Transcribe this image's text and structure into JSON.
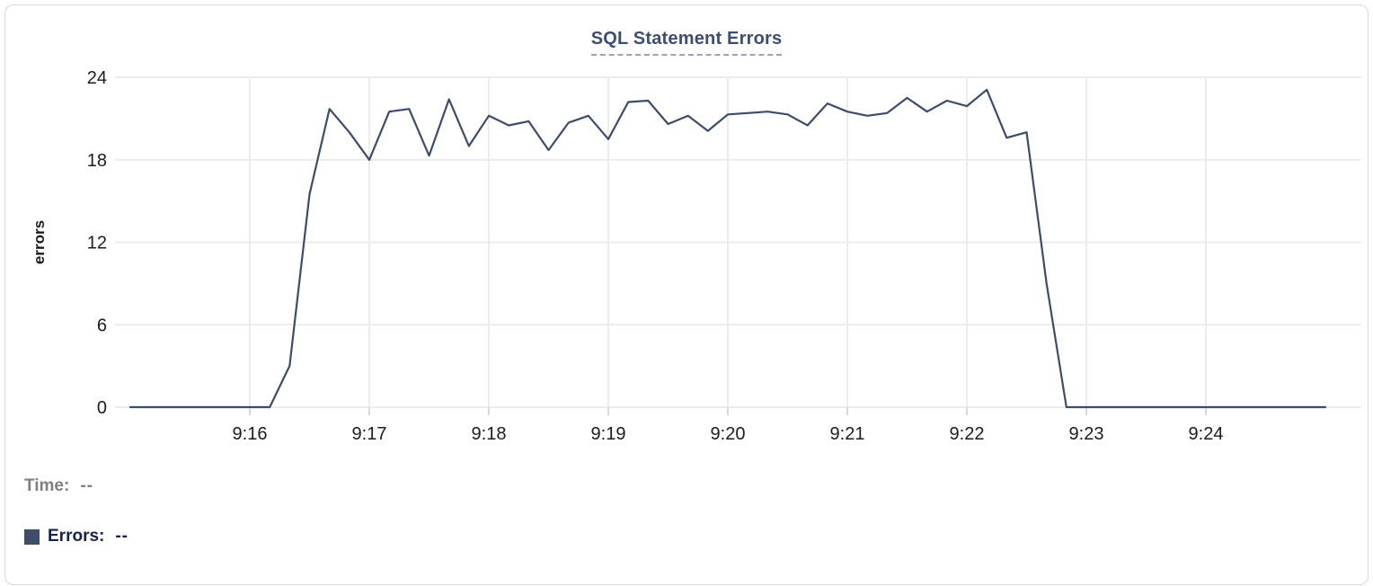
{
  "card": {
    "title": "SQL Statement Errors"
  },
  "readout": {
    "time_label": "Time:",
    "time_value": "--",
    "errors_label": "Errors:",
    "errors_value": "--"
  },
  "colors": {
    "line": "#3d4c69",
    "swatch": "#3f4d68",
    "title_text": "#3e4e6f",
    "grid": "#ececec",
    "tick_stub": "#d9d9d9",
    "axis_text": "#1c1c1c",
    "time_label": "#7f7f7f",
    "errors_label": "#16224a"
  },
  "chart_data": {
    "type": "line",
    "title": "SQL Statement Errors",
    "xlabel": "",
    "ylabel": "errors",
    "ylim": [
      0,
      24
    ],
    "yticks": [
      0,
      6,
      12,
      18,
      24
    ],
    "xticks": [
      "9:16",
      "9:17",
      "9:18",
      "9:19",
      "9:20",
      "9:21",
      "9:22",
      "9:23",
      "9:24"
    ],
    "grid": true,
    "legend_position": "bottom-left",
    "x_interval_seconds": 10,
    "series": [
      {
        "name": "Errors",
        "x": [
          "9:15:00",
          "9:15:10",
          "9:15:20",
          "9:15:30",
          "9:15:40",
          "9:15:50",
          "9:16:00",
          "9:16:10",
          "9:16:20",
          "9:16:30",
          "9:16:40",
          "9:16:50",
          "9:17:00",
          "9:17:10",
          "9:17:20",
          "9:17:30",
          "9:17:40",
          "9:17:50",
          "9:18:00",
          "9:18:10",
          "9:18:20",
          "9:18:30",
          "9:18:40",
          "9:18:50",
          "9:19:00",
          "9:19:10",
          "9:19:20",
          "9:19:30",
          "9:19:40",
          "9:19:50",
          "9:20:00",
          "9:20:10",
          "9:20:20",
          "9:20:30",
          "9:20:40",
          "9:20:50",
          "9:21:00",
          "9:21:10",
          "9:21:20",
          "9:21:30",
          "9:21:40",
          "9:21:50",
          "9:22:00",
          "9:22:10",
          "9:22:20",
          "9:22:30",
          "9:22:40",
          "9:22:50",
          "9:23:00",
          "9:23:10",
          "9:23:20",
          "9:23:30",
          "9:23:40",
          "9:23:50",
          "9:24:00",
          "9:24:10",
          "9:24:20",
          "9:24:30",
          "9:24:40",
          "9:24:50",
          "9:25:00"
        ],
        "values": [
          0,
          0,
          0,
          0,
          0,
          0,
          0,
          0,
          3,
          15.5,
          21.7,
          20,
          18,
          21.5,
          21.7,
          18.3,
          22.4,
          19,
          21.2,
          20.5,
          20.8,
          18.7,
          20.7,
          21.2,
          19.5,
          22.2,
          22.3,
          20.6,
          21.2,
          20.1,
          21.3,
          21.4,
          21.5,
          21.3,
          20.5,
          22.1,
          21.5,
          21.2,
          21.4,
          22.5,
          21.5,
          22.3,
          21.9,
          23.1,
          19.6,
          20,
          9,
          0,
          0,
          0,
          0,
          0,
          0,
          0,
          0,
          0,
          0,
          0,
          0,
          0,
          0
        ]
      }
    ]
  }
}
